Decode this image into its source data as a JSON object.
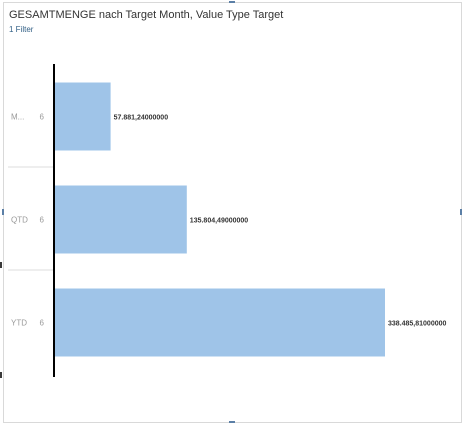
{
  "header": {
    "title": "GESAMTMENGE nach Target Month, Value Type Target",
    "filter_label": "1 Filter"
  },
  "chart_data": {
    "type": "bar",
    "orientation": "horizontal",
    "categories": [
      "M...",
      "QTD",
      "YTD"
    ],
    "category_secondary": [
      "6",
      "6",
      "6"
    ],
    "values": [
      57881.24,
      135804.49,
      338485.81
    ],
    "data_labels": [
      "57.881,24000000",
      "135.804,49000000",
      "338.485,81000000"
    ],
    "title": "GESAMTMENGE nach Target Month, Value Type Target",
    "xlim": [
      0,
      338485.81
    ],
    "grid": false,
    "legend": "none",
    "bar_color": "#9fc4e8",
    "axis_color": "#000000",
    "separator_color": "#dddddd",
    "label_color": "#999999"
  }
}
